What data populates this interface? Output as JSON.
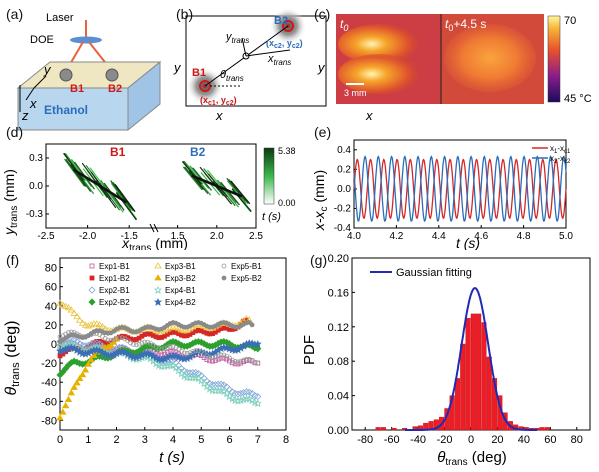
{
  "panels": {
    "a": {
      "label": "(a)",
      "laser": "Laser",
      "doe": "DOE",
      "b1": "B1",
      "b2": "B2",
      "y": "y",
      "x": "x",
      "z": "z",
      "ethanol": "Ethanol"
    },
    "b": {
      "label": "(b)",
      "b1": "B1",
      "b2": "B2",
      "y": "y",
      "x": "x",
      "ytrans": "y",
      "ytrans_sub": "trans",
      "xtrans": "x",
      "xtrans_sub": "trans",
      "theta": "θ",
      "theta_sub": "trans",
      "c1": "(x",
      "c1_sub1": "c1",
      "c1_mid": ", y",
      "c1_sub2": "c2",
      "c1_end": ")",
      "c2": "(x",
      "c2_sub1": "c2",
      "c2_mid": ", y",
      "c2_sub2": "c2",
      "c2_end": ")"
    },
    "c": {
      "label": "(c)",
      "t0": "t",
      "t0_sub": "0",
      "t1": "t",
      "t1_sub": "0",
      "t1_tail": "+4.5 s",
      "scale": "3 mm",
      "cb_max": "70",
      "cb_min": "45 °C",
      "y": "y",
      "x": "x"
    },
    "d": {
      "label": "(d)",
      "ylabel": "y",
      "ylabel_sub": "trans",
      "ylabel_unit": " (mm)",
      "xlabel": "x",
      "xlabel_sub": "trans",
      "xlabel_unit": " (mm)",
      "b1": "B1",
      "b2": "B2",
      "cb_max": "5.38",
      "cb_min": "0.00",
      "cb_title": "t (s)"
    },
    "e": {
      "label": "(e)",
      "ylabel": "x-x",
      "ylabel_sub": "c",
      "ylabel_unit": " (mm)",
      "xlabel": "t (s)",
      "legend1": "x",
      "legend1_sub": "1",
      "legend1_mid": "-x",
      "legend1_sub2": "c1",
      "legend2": "x",
      "legend2_sub": "2",
      "legend2_mid": "-x",
      "legend2_sub2": "c2"
    },
    "f": {
      "label": "(f)",
      "ylabel": "θ",
      "ylabel_sub": "trans",
      "ylabel_unit": " (deg)",
      "xlabel": "t (s)"
    },
    "g": {
      "label": "(g)",
      "ylabel": "PDF",
      "xlabel": "θ",
      "xlabel_sub": "trans",
      "xlabel_unit": " (deg)",
      "legend": "Gaussian fitting"
    }
  },
  "chart_data": [
    {
      "id": "d",
      "type": "scatter",
      "x_ticks": [
        "-2.5",
        "-2.0",
        "-1.5",
        "1.5",
        "2.0",
        "2.5"
      ],
      "y_ticks": [
        "0.3",
        "0.0",
        "-0.3"
      ],
      "xlim_left": [
        -2.5,
        -1.25
      ],
      "xlim_right": [
        1.25,
        2.5
      ],
      "ylim": [
        -0.45,
        0.45
      ],
      "colorbar": [
        0,
        5.38
      ],
      "series": [
        {
          "name": "B1",
          "center": [
            -1.85,
            0.0
          ],
          "slope": -0.55
        },
        {
          "name": "B2",
          "center": [
            2.0,
            0.0
          ],
          "slope": -0.35
        }
      ]
    },
    {
      "id": "e",
      "type": "line",
      "x_ticks": [
        "4.0",
        "4.2",
        "4.4",
        "4.6",
        "4.8",
        "5.0"
      ],
      "y_ticks": [
        "-0.4",
        "-0.2",
        "0.0",
        "0.2",
        "0.4"
      ],
      "xlim": [
        4.0,
        5.0
      ],
      "ylim": [
        -0.4,
        0.5
      ],
      "series": [
        {
          "name": "x1-xc1",
          "color": "#d62728",
          "amplitude": 0.3,
          "frequency_hz": 16,
          "phase": 0.0
        },
        {
          "name": "x2-xc2",
          "color": "#2a6ebb",
          "amplitude": 0.33,
          "frequency_hz": 16,
          "phase": 2.6
        }
      ]
    },
    {
      "id": "f",
      "type": "scatter",
      "x_ticks": [
        "0",
        "1",
        "2",
        "3",
        "4",
        "5",
        "6",
        "7",
        "8"
      ],
      "y_ticks": [
        "80",
        "60",
        "40",
        "20",
        "0",
        "-20",
        "-40",
        "-60",
        "-80"
      ],
      "xlim": [
        0,
        8
      ],
      "ylim": [
        -90,
        90
      ],
      "series": [
        {
          "name": "Exp1-B1",
          "color": "#c0559f",
          "marker": "open-square",
          "points": [
            [
              0.0,
              0
            ],
            [
              1.0,
              -4
            ],
            [
              2.0,
              -6
            ],
            [
              3.0,
              -8
            ],
            [
              4.0,
              -10
            ],
            [
              5.0,
              -14
            ],
            [
              6.0,
              -18
            ],
            [
              7.0,
              -20
            ]
          ]
        },
        {
          "name": "Exp1-B2",
          "color": "#d62728",
          "marker": "square",
          "points": [
            [
              0.0,
              -10
            ],
            [
              1.0,
              -2
            ],
            [
              2.0,
              5
            ],
            [
              3.0,
              8
            ],
            [
              4.0,
              10
            ],
            [
              5.0,
              12
            ],
            [
              6.0,
              15
            ],
            [
              6.6,
              25
            ]
          ]
        },
        {
          "name": "Exp2-B1",
          "color": "#7fa8d8",
          "marker": "open-diamond",
          "points": [
            [
              0.0,
              5
            ],
            [
              1.0,
              0
            ],
            [
              2.0,
              -5
            ],
            [
              3.0,
              -10
            ],
            [
              4.0,
              -20
            ],
            [
              5.0,
              -35
            ],
            [
              6.0,
              -48
            ],
            [
              7.0,
              -55
            ]
          ]
        },
        {
          "name": "Exp2-B2",
          "color": "#2ca02c",
          "marker": "diamond",
          "points": [
            [
              0.0,
              -30
            ],
            [
              0.5,
              -20
            ],
            [
              1.0,
              -18
            ],
            [
              2.0,
              -10
            ],
            [
              3.0,
              -5
            ],
            [
              4.0,
              0
            ],
            [
              5.0,
              0
            ],
            [
              6.0,
              0
            ],
            [
              7.0,
              -5
            ]
          ]
        },
        {
          "name": "Exp3-B1",
          "color": "#e8c23a",
          "marker": "open-triangle",
          "points": [
            [
              0.0,
              45
            ],
            [
              0.5,
              30
            ],
            [
              1.0,
              20
            ],
            [
              2.0,
              15
            ],
            [
              3.0,
              15
            ],
            [
              4.0,
              15
            ],
            [
              5.0,
              18
            ],
            [
              6.0,
              20
            ],
            [
              6.7,
              25
            ]
          ]
        },
        {
          "name": "Exp3-B2",
          "color": "#e8b100",
          "marker": "triangle",
          "points": [
            [
              0.0,
              -75
            ],
            [
              0.3,
              -60
            ],
            [
              0.7,
              -35
            ],
            [
              1.0,
              -20
            ],
            [
              1.5,
              -5
            ],
            [
              2.0,
              5
            ]
          ]
        },
        {
          "name": "Exp4-B1",
          "color": "#7fd0c0",
          "marker": "open-star",
          "points": [
            [
              0.0,
              0
            ],
            [
              1.0,
              -5
            ],
            [
              2.0,
              -10
            ],
            [
              3.0,
              -15
            ],
            [
              4.0,
              -25
            ],
            [
              5.0,
              -40
            ],
            [
              6.0,
              -55
            ],
            [
              7.0,
              -62
            ]
          ]
        },
        {
          "name": "Exp4-B2",
          "color": "#3b6fb5",
          "marker": "star",
          "points": [
            [
              0.0,
              -5
            ],
            [
              1.0,
              -8
            ],
            [
              2.0,
              -10
            ],
            [
              3.0,
              -12
            ],
            [
              4.0,
              -15
            ],
            [
              5.0,
              -10
            ],
            [
              6.0,
              -5
            ],
            [
              7.0,
              0
            ]
          ]
        },
        {
          "name": "Exp5-B1",
          "color": "#9a9a9a",
          "marker": "open-circle",
          "points": [
            [
              0.0,
              10
            ],
            [
              1.0,
              10
            ],
            [
              2.0,
              5
            ],
            [
              3.0,
              0
            ],
            [
              4.0,
              -5
            ],
            [
              5.0,
              -10
            ],
            [
              6.0,
              -15
            ],
            [
              7.0,
              -20
            ]
          ]
        },
        {
          "name": "Exp5-B2",
          "color": "#8a8a8a",
          "marker": "circle",
          "points": [
            [
              0.0,
              5
            ],
            [
              1.0,
              10
            ],
            [
              2.0,
              15
            ],
            [
              3.0,
              15
            ],
            [
              4.0,
              20
            ],
            [
              5.0,
              20
            ],
            [
              6.0,
              20
            ],
            [
              6.8,
              20
            ]
          ]
        }
      ]
    },
    {
      "id": "g",
      "type": "bar",
      "x_ticks": [
        "-80",
        "-60",
        "-40",
        "-20",
        "0",
        "20",
        "40",
        "60",
        "80"
      ],
      "y_ticks": [
        "0.00",
        "0.04",
        "0.08",
        "0.12",
        "0.16",
        "0.20"
      ],
      "xlim": [
        -90,
        90
      ],
      "ylim": [
        0,
        0.2
      ],
      "bin_width": 4,
      "bins": [
        -72,
        -68,
        -60,
        -52,
        -44,
        -40,
        -36,
        -32,
        -28,
        -24,
        -20,
        -16,
        -12,
        -8,
        -4,
        0,
        4,
        8,
        12,
        16,
        20,
        24,
        28,
        32,
        36,
        40,
        44,
        48,
        52,
        56
      ],
      "values": [
        0.003,
        0.003,
        0.002,
        0.002,
        0.004,
        0.005,
        0.008,
        0.01,
        0.012,
        0.015,
        0.025,
        0.04,
        0.06,
        0.1,
        0.13,
        0.135,
        0.135,
        0.125,
        0.085,
        0.06,
        0.04,
        0.02,
        0.01,
        0.006,
        0.004,
        0.003,
        0.002,
        0.002,
        0.003,
        0.003
      ],
      "fit": {
        "name": "Gaussian fitting",
        "color": "#1f2ab5",
        "mean": 3,
        "sigma": 10,
        "peak": 0.165
      }
    }
  ]
}
